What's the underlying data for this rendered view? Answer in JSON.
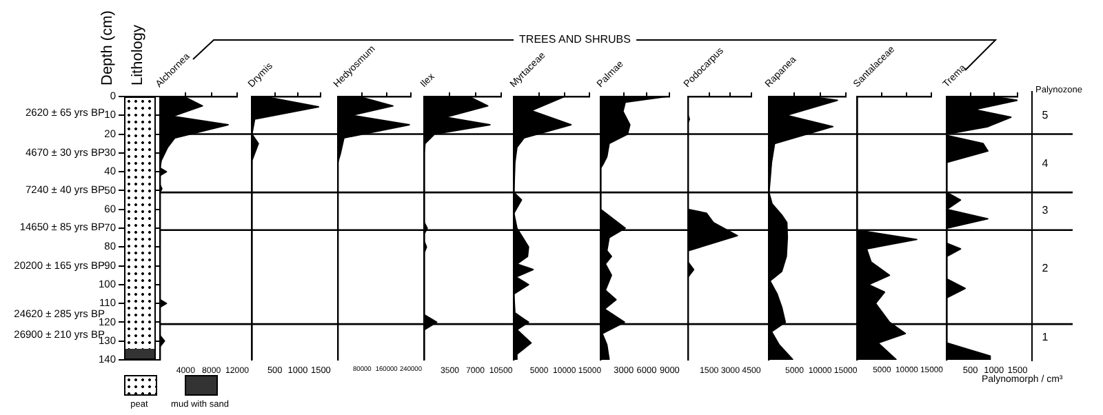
{
  "chart_data": [
    {
      "type": "area",
      "orientation": "horizontal",
      "title": "Alchornea",
      "ylabel": "Depth (cm)",
      "x": [
        0,
        5,
        10.5,
        15,
        22,
        27,
        34,
        38,
        40,
        42,
        47,
        49,
        51,
        108,
        110,
        112,
        127,
        130,
        133,
        140
      ],
      "values": [
        3700,
        6600,
        2000,
        10600,
        2300,
        1200,
        200,
        0,
        1000,
        0,
        0,
        300,
        0,
        0,
        1000,
        0,
        0,
        700,
        0,
        0
      ],
      "color": "#000000",
      "xlim": [
        0,
        12000
      ],
      "xticks": [
        4000,
        8000,
        12000
      ],
      "ylim": [
        140,
        0
      ],
      "yticks": [
        0,
        10,
        20,
        30,
        40,
        50,
        60,
        70,
        80,
        90,
        100,
        110,
        120,
        130,
        140
      ],
      "ref_lines": [
        {
          "axis": "y",
          "value": 20
        },
        {
          "axis": "y",
          "value": 51
        },
        {
          "axis": "y",
          "value": 71
        },
        {
          "axis": "y",
          "value": 121
        }
      ],
      "annotations": [
        "TREES AND SHRUBS",
        "Lithology",
        "peat",
        "mud with sand",
        "2620 ± 65 yrs BP",
        "4670 ± 30 yrs BP",
        "7240 ± 40 yrs BP",
        "14650 ± 85 yrs BP",
        "20200 ± 165 yrs BP",
        "24620 ± 285 yrs BP",
        "26900 ± 210 yrs BP"
      ]
    },
    {
      "type": "area",
      "orientation": "horizontal",
      "title": "Drymis",
      "x": [
        0,
        5.5,
        12,
        20,
        25,
        34,
        140
      ],
      "values": [
        260,
        1450,
        60,
        0,
        140,
        0,
        0
      ],
      "color": "#000000",
      "xlim": [
        0,
        1500
      ],
      "xticks": [
        500,
        1000,
        1500
      ],
      "ylim": [
        140,
        0
      ],
      "tick_labels": "x",
      "ref_lines": [
        {
          "axis": "y",
          "value": 20
        },
        {
          "axis": "y",
          "value": 51
        },
        {
          "axis": "y",
          "value": 71
        },
        {
          "axis": "y",
          "value": 121
        }
      ]
    },
    {
      "type": "area",
      "orientation": "horizontal",
      "title": "Hedyosmum",
      "x": [
        0,
        5,
        10,
        15,
        22,
        30,
        35,
        140
      ],
      "values": [
        68000,
        181000,
        45000,
        235000,
        20000,
        9000,
        0,
        0
      ],
      "color": "#000000",
      "xlim": [
        0,
        240000
      ],
      "xticks": [
        80000,
        160000,
        240000
      ],
      "ylim": [
        140,
        0
      ],
      "tick_labels": "x",
      "ref_lines": [
        {
          "axis": "y",
          "value": 20
        },
        {
          "axis": "y",
          "value": 51
        },
        {
          "axis": "y",
          "value": 71
        },
        {
          "axis": "y",
          "value": 121
        }
      ]
    },
    {
      "type": "area",
      "orientation": "horizontal",
      "title": "Ilex",
      "x": [
        0,
        5,
        11,
        15,
        20,
        25,
        30,
        67,
        70,
        73,
        77,
        80,
        83,
        116,
        120,
        124,
        140
      ],
      "values": [
        6100,
        8700,
        2900,
        9000,
        1400,
        100,
        0,
        0,
        400,
        0,
        0,
        300,
        0,
        0,
        1700,
        0,
        0
      ],
      "color": "#000000",
      "xlim": [
        0,
        10500
      ],
      "xticks": [
        3500,
        7000,
        10500
      ],
      "ylim": [
        140,
        0
      ],
      "tick_labels": "x",
      "ref_lines": [
        {
          "axis": "y",
          "value": 20
        },
        {
          "axis": "y",
          "value": 51
        },
        {
          "axis": "y",
          "value": 71
        },
        {
          "axis": "y",
          "value": 121
        }
      ]
    },
    {
      "type": "area",
      "orientation": "horizontal",
      "title": "Myrtaceae",
      "x": [
        0,
        7.5,
        15,
        22,
        27,
        35,
        51,
        55,
        62,
        70,
        80,
        85,
        89,
        92,
        96,
        100,
        105,
        115,
        120,
        124,
        131,
        137,
        140
      ],
      "values": [
        10000,
        3400,
        11300,
        2000,
        600,
        200,
        0,
        1500,
        0,
        600,
        2900,
        2700,
        600,
        3800,
        400,
        2900,
        0,
        200,
        2900,
        600,
        3400,
        600,
        600
      ],
      "color": "#000000",
      "xlim": [
        0,
        15000
      ],
      "xticks": [
        5000,
        10000,
        15000
      ],
      "ylim": [
        140,
        0
      ],
      "tick_labels": "x",
      "ref_lines": [
        {
          "axis": "y",
          "value": 20
        },
        {
          "axis": "y",
          "value": 51
        },
        {
          "axis": "y",
          "value": 71
        },
        {
          "axis": "y",
          "value": 121
        }
      ]
    },
    {
      "type": "area",
      "orientation": "horizontal",
      "title": "Palmae",
      "x": [
        0,
        3,
        8,
        15,
        20,
        25,
        32,
        36,
        38,
        60,
        70,
        75,
        82,
        85,
        89,
        95,
        103,
        108,
        113,
        120,
        126,
        132,
        140
      ],
      "values": [
        8600,
        3200,
        2900,
        3800,
        3500,
        1100,
        800,
        300,
        0,
        0,
        3200,
        1100,
        800,
        1400,
        600,
        1400,
        600,
        2000,
        500,
        3100,
        200,
        800,
        1100
      ],
      "color": "#000000",
      "xlim": [
        0,
        9000
      ],
      "xticks": [
        3000,
        6000,
        9000
      ],
      "ylim": [
        140,
        0
      ],
      "tick_labels": "x",
      "ref_lines": [
        {
          "axis": "y",
          "value": 20
        },
        {
          "axis": "y",
          "value": 51
        },
        {
          "axis": "y",
          "value": 71
        },
        {
          "axis": "y",
          "value": 121
        }
      ]
    },
    {
      "type": "area",
      "orientation": "horizontal",
      "title": "Podocarpus",
      "x": [
        0,
        10,
        12,
        14,
        60,
        62,
        67,
        74,
        82,
        88,
        92,
        96,
        140
      ],
      "values": [
        0,
        0,
        100,
        0,
        0,
        1300,
        1800,
        3500,
        0,
        0,
        400,
        0,
        0
      ],
      "color": "#000000",
      "xlim": [
        0,
        4500
      ],
      "xticks": [
        1500,
        3000,
        4500
      ],
      "ylim": [
        140,
        0
      ],
      "tick_labels": "x",
      "ref_lines": [
        {
          "axis": "y",
          "value": 20
        },
        {
          "axis": "y",
          "value": 51
        },
        {
          "axis": "y",
          "value": 71
        },
        {
          "axis": "y",
          "value": 121
        }
      ]
    },
    {
      "type": "area",
      "orientation": "horizontal",
      "title": "Rapanea",
      "x": [
        0,
        2,
        10,
        16,
        25,
        35,
        45,
        51,
        57,
        63,
        67,
        75,
        85,
        93,
        98,
        105,
        112,
        120,
        125,
        132,
        140
      ],
      "values": [
        7900,
        13400,
        3400,
        12500,
        1100,
        500,
        200,
        0,
        600,
        2500,
        3500,
        3600,
        3400,
        2500,
        200,
        1600,
        2500,
        3200,
        500,
        2000,
        4700
      ],
      "color": "#000000",
      "xlim": [
        0,
        15000
      ],
      "xticks": [
        5000,
        10000,
        15000
      ],
      "ylim": [
        140,
        0
      ],
      "tick_labels": "x",
      "ref_lines": [
        {
          "axis": "y",
          "value": 20
        },
        {
          "axis": "y",
          "value": 51
        },
        {
          "axis": "y",
          "value": 71
        },
        {
          "axis": "y",
          "value": 121
        }
      ]
    },
    {
      "type": "area",
      "orientation": "horizontal",
      "title": "Santalaceae",
      "x": [
        0,
        71,
        76,
        81,
        88,
        95,
        100,
        104,
        110,
        120,
        126,
        131,
        140
      ],
      "values": [
        0,
        0,
        12000,
        1900,
        2800,
        6500,
        2300,
        5500,
        3700,
        6500,
        9700,
        4200,
        7900
      ],
      "color": "#000000",
      "xlim": [
        0,
        15000
      ],
      "xticks": [
        5000,
        10000,
        15000
      ],
      "ylim": [
        140,
        0
      ],
      "tick_labels": "x",
      "ref_lines": [
        {
          "axis": "y",
          "value": 20
        },
        {
          "axis": "y",
          "value": 51
        },
        {
          "axis": "y",
          "value": 71
        },
        {
          "axis": "y",
          "value": 121
        }
      ]
    },
    {
      "type": "area",
      "orientation": "horizontal",
      "title": "Trema",
      "xlabel": "Palynomorph / cm³",
      "x": [
        0,
        2,
        7,
        11,
        16,
        20,
        21,
        25,
        29,
        35,
        51,
        55,
        60,
        65,
        70,
        78,
        81,
        85,
        97,
        102,
        107,
        131,
        138,
        140
      ],
      "values": [
        970,
        1500,
        580,
        1360,
        870,
        0,
        50,
        770,
        870,
        0,
        0,
        290,
        0,
        870,
        0,
        0,
        290,
        0,
        0,
        390,
        0,
        0,
        920,
        920
      ],
      "color": "#000000",
      "xlim": [
        0,
        1500
      ],
      "xticks": [
        500,
        1000,
        1500
      ],
      "ylim": [
        140,
        0
      ],
      "tick_labels": "x",
      "ref_lines": [
        {
          "axis": "y",
          "value": 20
        },
        {
          "axis": "y",
          "value": 51
        },
        {
          "axis": "y",
          "value": 71
        },
        {
          "axis": "y",
          "value": 121
        }
      ],
      "annotations": [
        "Palynozone",
        "5",
        "4",
        "3",
        "2",
        "1"
      ]
    }
  ]
}
